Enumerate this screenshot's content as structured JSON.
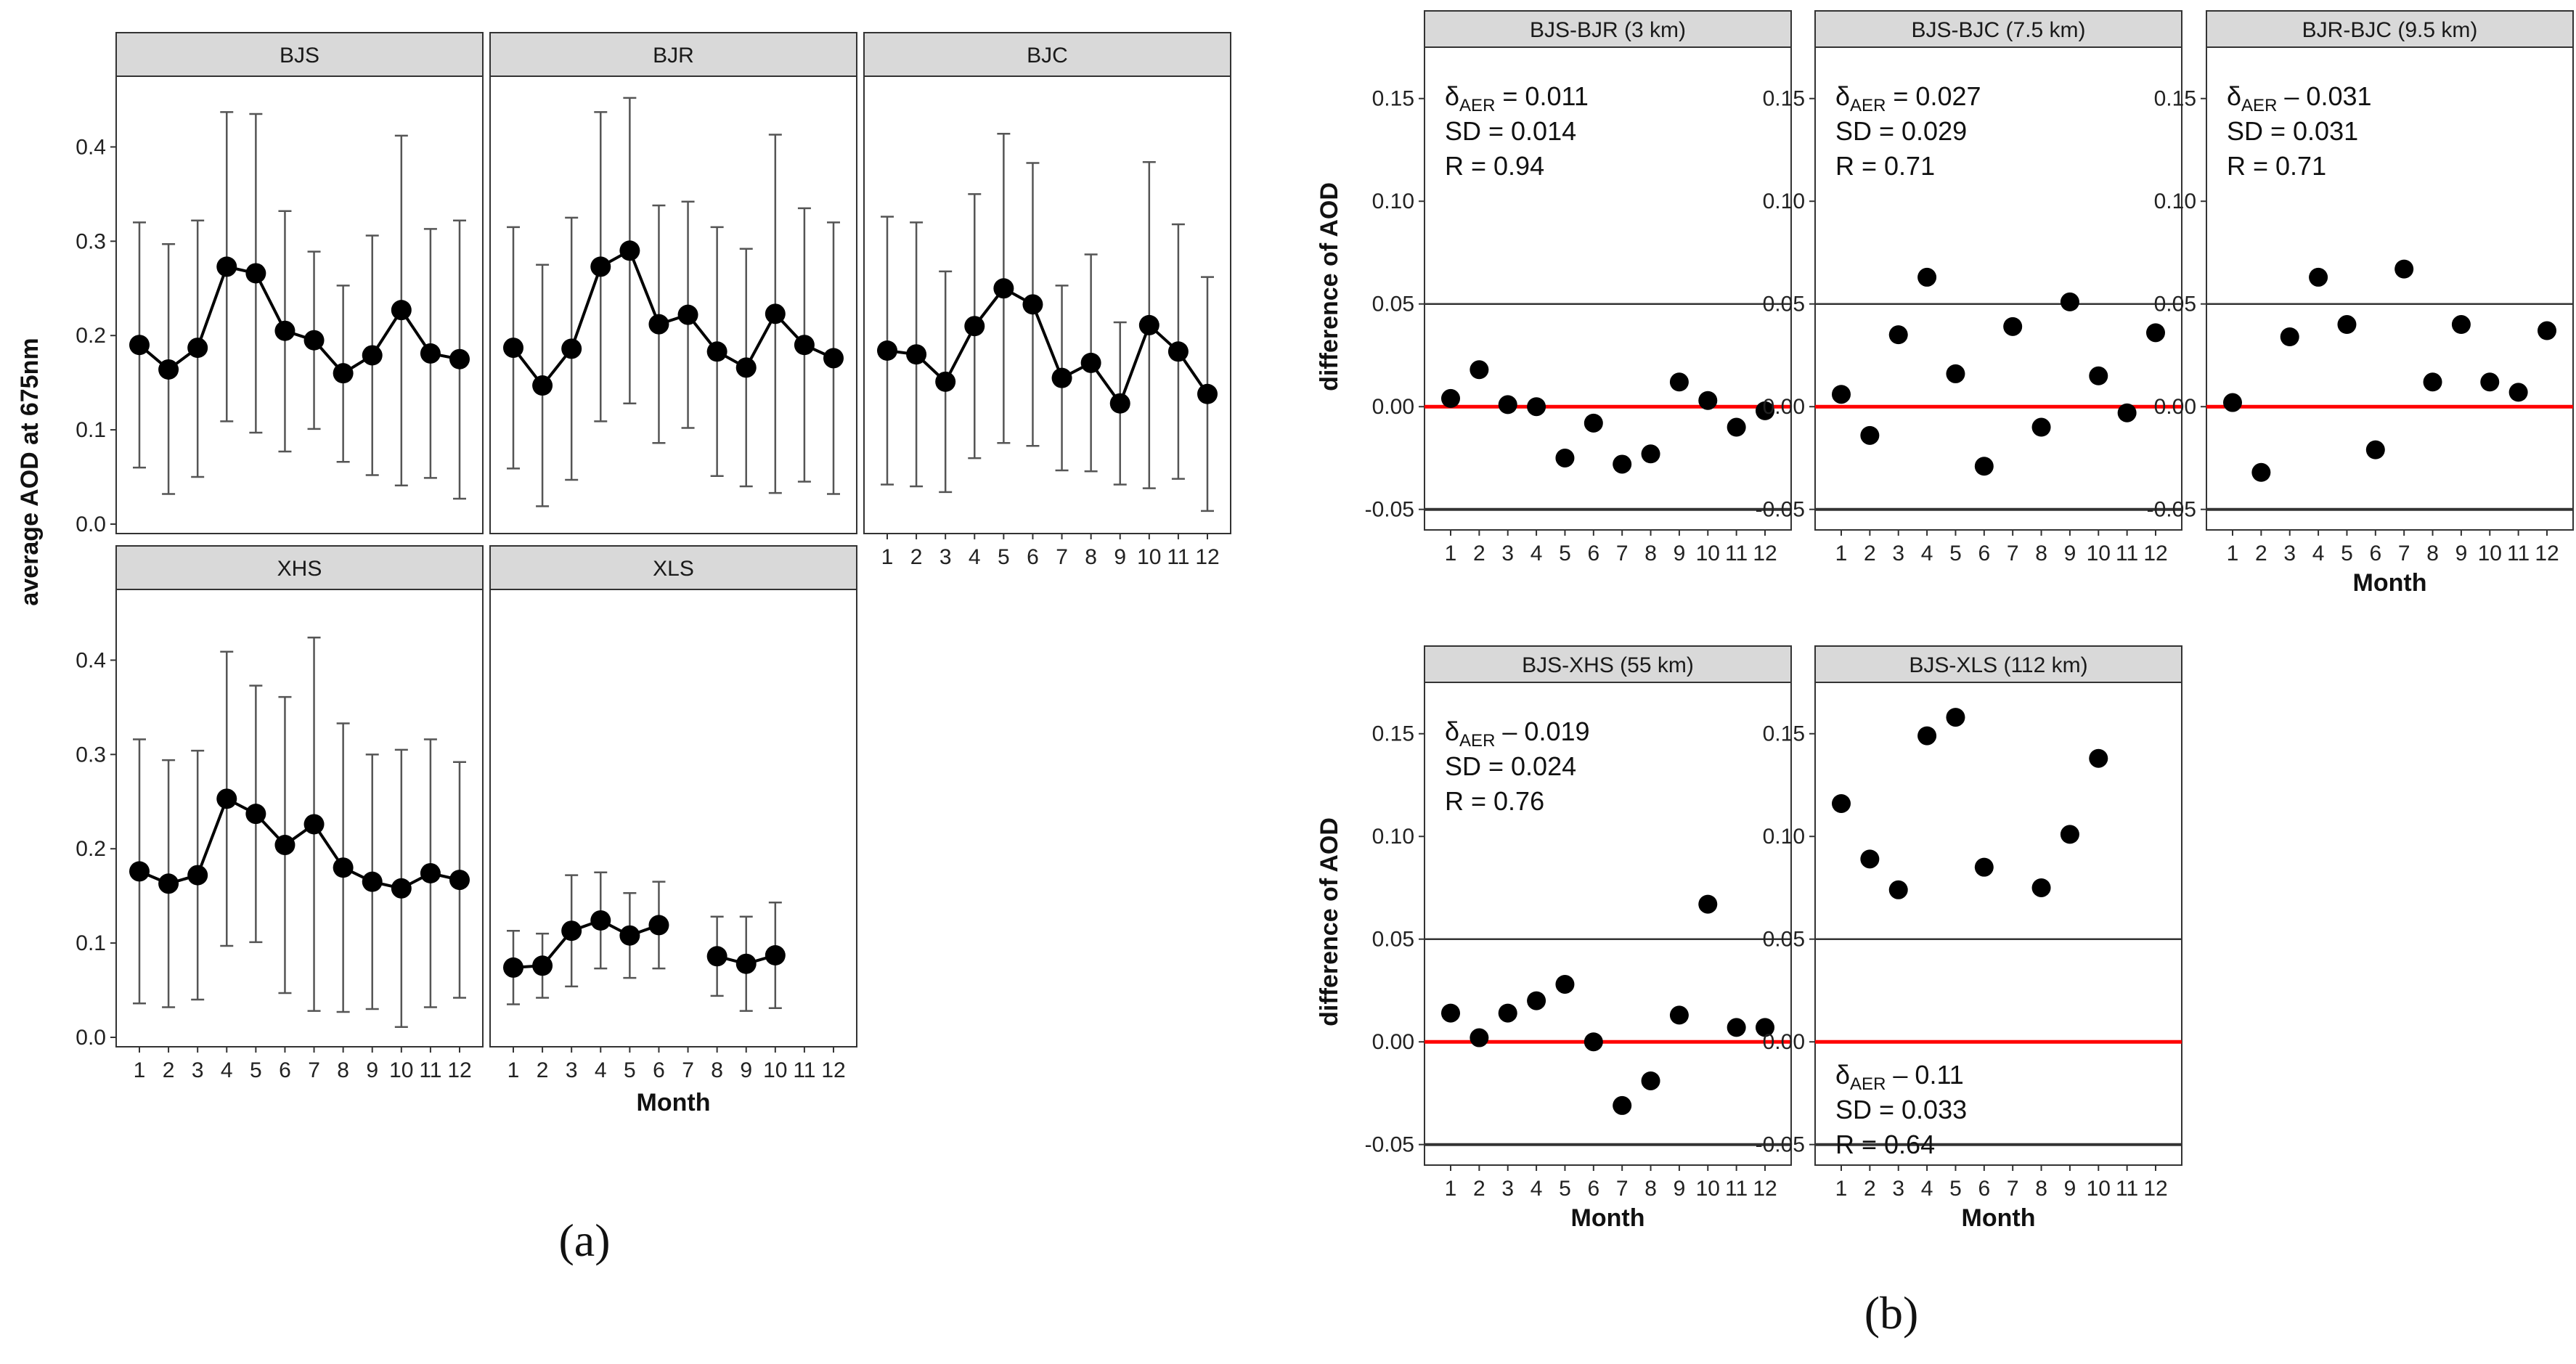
{
  "figure": {
    "label_a": "(a)",
    "label_b": "(b)",
    "colors": {
      "point": "#000000",
      "line": "#000000",
      "zero_line": "#ff0000",
      "strip_fill": "#d9d9d9",
      "ref_line": "#333333"
    }
  },
  "chart_data": [
    {
      "id": "a",
      "type": "line",
      "ylabel": "average AOD at 675nm",
      "xlabel": "Month",
      "x_ticks": [
        "1",
        "2",
        "3",
        "4",
        "5",
        "6",
        "7",
        "8",
        "9",
        "10",
        "11",
        "12"
      ],
      "ylim": [
        -0.01,
        0.475
      ],
      "y_ticks": [
        "0.0",
        "0.1",
        "0.2",
        "0.3",
        "0.4"
      ],
      "y_tick_values": [
        0.0,
        0.1,
        0.2,
        0.3,
        0.4
      ],
      "panels": [
        {
          "title": "BJS",
          "values": [
            0.19,
            0.164,
            0.187,
            0.273,
            0.266,
            0.205,
            0.195,
            0.16,
            0.179,
            0.227,
            0.181,
            0.175
          ],
          "upper": [
            0.32,
            0.297,
            0.322,
            0.437,
            0.435,
            0.332,
            0.289,
            0.253,
            0.306,
            0.412,
            0.313,
            0.322
          ],
          "lower": [
            0.06,
            0.032,
            0.05,
            0.109,
            0.097,
            0.077,
            0.101,
            0.066,
            0.052,
            0.041,
            0.049,
            0.027
          ]
        },
        {
          "title": "BJR",
          "values": [
            0.187,
            0.147,
            0.186,
            0.273,
            0.29,
            0.212,
            0.222,
            0.183,
            0.166,
            0.223,
            0.19,
            0.176
          ],
          "upper": [
            0.315,
            0.275,
            0.325,
            0.437,
            0.452,
            0.338,
            0.342,
            0.315,
            0.292,
            0.413,
            0.335,
            0.32
          ],
          "lower": [
            0.059,
            0.019,
            0.047,
            0.109,
            0.128,
            0.086,
            0.102,
            0.051,
            0.04,
            0.033,
            0.045,
            0.032
          ]
        },
        {
          "title": "BJC",
          "values": [
            0.184,
            0.18,
            0.151,
            0.21,
            0.25,
            0.233,
            0.155,
            0.171,
            0.128,
            0.211,
            0.183,
            0.138
          ],
          "upper": [
            0.326,
            0.32,
            0.268,
            0.35,
            0.414,
            0.383,
            0.253,
            0.286,
            0.214,
            0.384,
            0.318,
            0.262
          ],
          "lower": [
            0.042,
            0.04,
            0.034,
            0.07,
            0.086,
            0.083,
            0.057,
            0.056,
            0.042,
            0.038,
            0.048,
            0.014
          ]
        },
        {
          "title": "XHS",
          "values": [
            0.176,
            0.163,
            0.172,
            0.253,
            0.237,
            0.204,
            0.226,
            0.18,
            0.165,
            0.158,
            0.174,
            0.167
          ],
          "upper": [
            0.316,
            0.294,
            0.304,
            0.409,
            0.373,
            0.361,
            0.424,
            0.333,
            0.3,
            0.305,
            0.316,
            0.292
          ],
          "lower": [
            0.036,
            0.032,
            0.04,
            0.097,
            0.101,
            0.047,
            0.028,
            0.027,
            0.03,
            0.011,
            0.032,
            0.042
          ]
        },
        {
          "title": "XLS",
          "values": [
            0.074,
            0.076,
            0.113,
            0.124,
            0.108,
            0.119,
            null,
            0.086,
            0.078,
            0.087,
            null,
            null
          ],
          "upper": [
            0.113,
            0.11,
            0.172,
            0.175,
            0.153,
            0.165,
            null,
            0.128,
            0.128,
            0.143,
            null,
            null
          ],
          "lower": [
            0.035,
            0.042,
            0.054,
            0.073,
            0.063,
            0.073,
            null,
            0.044,
            0.028,
            0.031,
            null,
            null
          ]
        }
      ]
    },
    {
      "id": "b",
      "type": "scatter",
      "ylabel": "difference of AOD",
      "xlabel": "Month",
      "x_ticks": [
        "1",
        "2",
        "3",
        "4",
        "5",
        "6",
        "7",
        "8",
        "9",
        "10",
        "11",
        "12"
      ],
      "ylim": [
        -0.06,
        0.175
      ],
      "y_ticks": [
        "-0.05",
        "0.00",
        "0.05",
        "0.10",
        "0.15"
      ],
      "y_tick_values": [
        -0.05,
        0.0,
        0.05,
        0.1,
        0.15
      ],
      "reference_lines": [
        -0.05,
        0.05
      ],
      "zero_line": 0.0,
      "panels": [
        {
          "title": "BJS-BJR (3 km)",
          "values": [
            0.004,
            0.018,
            0.001,
            0.0,
            -0.025,
            -0.008,
            -0.028,
            -0.023,
            0.012,
            0.003,
            -0.01,
            -0.002
          ],
          "stats": {
            "delta_prefix": "δ",
            "delta_sub": "AER",
            "delta_text": " = 0.011",
            "sd_text": "SD = 0.014",
            "r_text": "R = 0.94"
          }
        },
        {
          "title": "BJS-BJC (7.5 km)",
          "values": [
            0.006,
            -0.014,
            0.035,
            0.063,
            0.016,
            -0.029,
            0.039,
            -0.01,
            0.051,
            0.015,
            -0.003,
            0.036
          ],
          "stats": {
            "delta_prefix": "δ",
            "delta_sub": "AER",
            "delta_text": " = 0.027",
            "sd_text": "SD = 0.029",
            "r_text": "R = 0.71"
          }
        },
        {
          "title": "BJR-BJC (9.5 km)",
          "values": [
            0.002,
            -0.032,
            0.034,
            0.063,
            0.04,
            -0.021,
            0.067,
            0.012,
            0.04,
            0.012,
            0.007,
            0.037
          ],
          "stats": {
            "delta_prefix": "δ",
            "delta_sub": "AER",
            "delta_text": " – 0.031",
            "sd_text": "SD = 0.031",
            "r_text": "R = 0.71"
          }
        },
        {
          "title": "BJS-XHS (55 km)",
          "values": [
            0.014,
            0.002,
            0.014,
            0.02,
            0.028,
            0.0,
            -0.031,
            -0.019,
            0.013,
            0.067,
            0.007,
            0.007
          ],
          "stats": {
            "delta_prefix": "δ",
            "delta_sub": "AER",
            "delta_text": " – 0.019",
            "sd_text": "SD = 0.024",
            "r_text": "R = 0.76"
          }
        },
        {
          "title": "BJS-XLS (112 km)",
          "values": [
            0.116,
            0.089,
            0.074,
            0.149,
            0.158,
            0.085,
            null,
            0.075,
            0.101,
            0.138,
            null,
            null
          ],
          "stats": {
            "delta_prefix": "δ",
            "delta_sub": "AER",
            "delta_text": " – 0.11",
            "sd_text": "SD = 0.033",
            "r_text": "R = 0.64"
          }
        }
      ]
    }
  ]
}
